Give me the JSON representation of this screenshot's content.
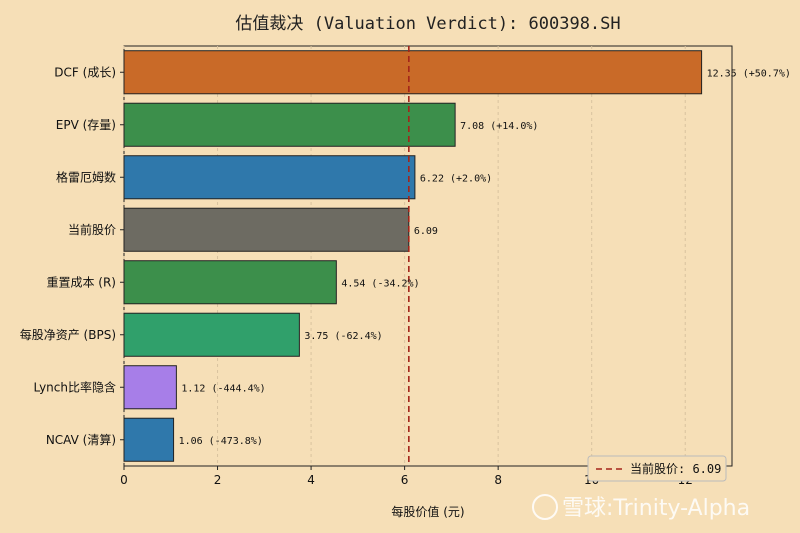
{
  "chart_data": {
    "type": "bar",
    "orientation": "horizontal",
    "title": "估值裁决 (Valuation Verdict): 600398.SH",
    "xlabel": "每股价值 (元)",
    "ylabel": "",
    "xlim": [
      0,
      13.0
    ],
    "xticks": [
      0,
      2,
      4,
      6,
      8,
      10,
      12
    ],
    "grid": "x-dashed",
    "categories": [
      "DCF (成长)",
      "EPV (存量)",
      "格雷厄姆数",
      "当前股价",
      "重置成本 (R)",
      "每股净资产 (BPS)",
      "Lynch比率隐含",
      "NCAV (清算)"
    ],
    "values": [
      12.35,
      7.08,
      6.22,
      6.09,
      4.54,
      3.75,
      1.12,
      1.06
    ],
    "value_labels": [
      "12.35 (+50.7%)",
      "7.08 (+14.0%)",
      "6.22 (+2.0%)",
      "6.09",
      "4.54 (-34.2%)",
      "3.75 (-62.4%)",
      "1.12 (-444.4%)",
      "1.06 (-473.8%)"
    ],
    "colors": [
      "#c96a28",
      "#3c8f4b",
      "#2f78ab",
      "#6d6b62",
      "#3c8f4b",
      "#30a06b",
      "#a77ee8",
      "#2f78ab"
    ],
    "reference_line": {
      "value": 6.09,
      "label": "当前股价: 6.09",
      "color": "#a3241a",
      "style": "dashed"
    },
    "legend": "bottom-right"
  },
  "watermark": "雪球:Trinity-Alpha"
}
